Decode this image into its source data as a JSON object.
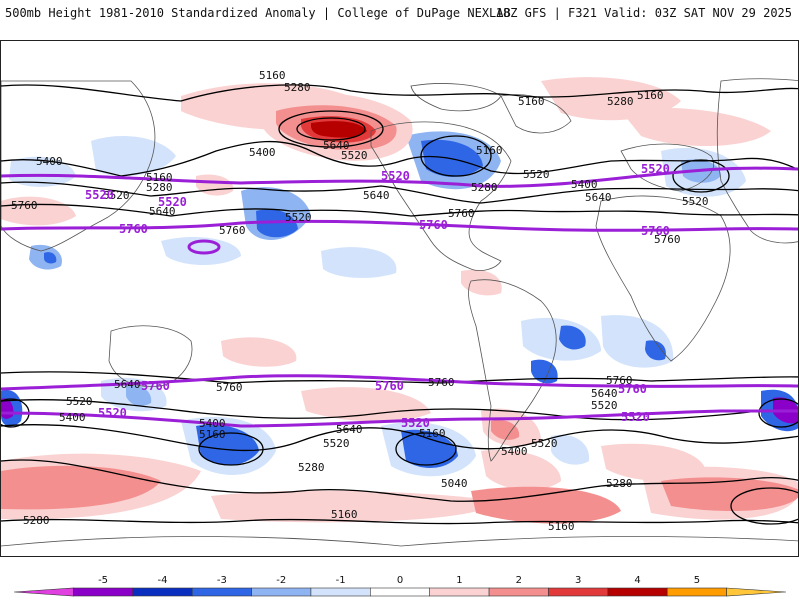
{
  "header": {
    "title": "500mb Height 1981-2010 Standardized Anomaly | College of DuPage NEXLAB",
    "run_info": "18Z GFS | F321 Valid: 03Z SAT NOV 29 2025"
  },
  "map": {
    "black_contour_labels": [
      "5160",
      "5280",
      "5400",
      "5520",
      "5640",
      "5760",
      "5040"
    ],
    "purple_contour_labels": [
      "5520",
      "5760"
    ],
    "colors": {
      "land": "#ffffff",
      "coast": "#555555",
      "contour": "#000000",
      "climo_contour": "#9a1fd6"
    }
  },
  "colorbar": {
    "ticks": [
      "-5",
      "-4",
      "-3",
      "-2",
      "-1",
      "0",
      "1",
      "2",
      "3",
      "4",
      "5"
    ],
    "bins": [
      {
        "color": "#e040e0"
      },
      {
        "color": "#8b00c8"
      },
      {
        "color": "#0a2fc0"
      },
      {
        "color": "#2f66e6"
      },
      {
        "color": "#8fb4f2"
      },
      {
        "color": "#d2e3fb"
      },
      {
        "color": "#ffffff"
      },
      {
        "color": "#fad2d2"
      },
      {
        "color": "#f38f8f"
      },
      {
        "color": "#e23a3a"
      },
      {
        "color": "#b60000"
      },
      {
        "color": "#ff9c00"
      },
      {
        "color": "#ffc63a"
      }
    ]
  }
}
